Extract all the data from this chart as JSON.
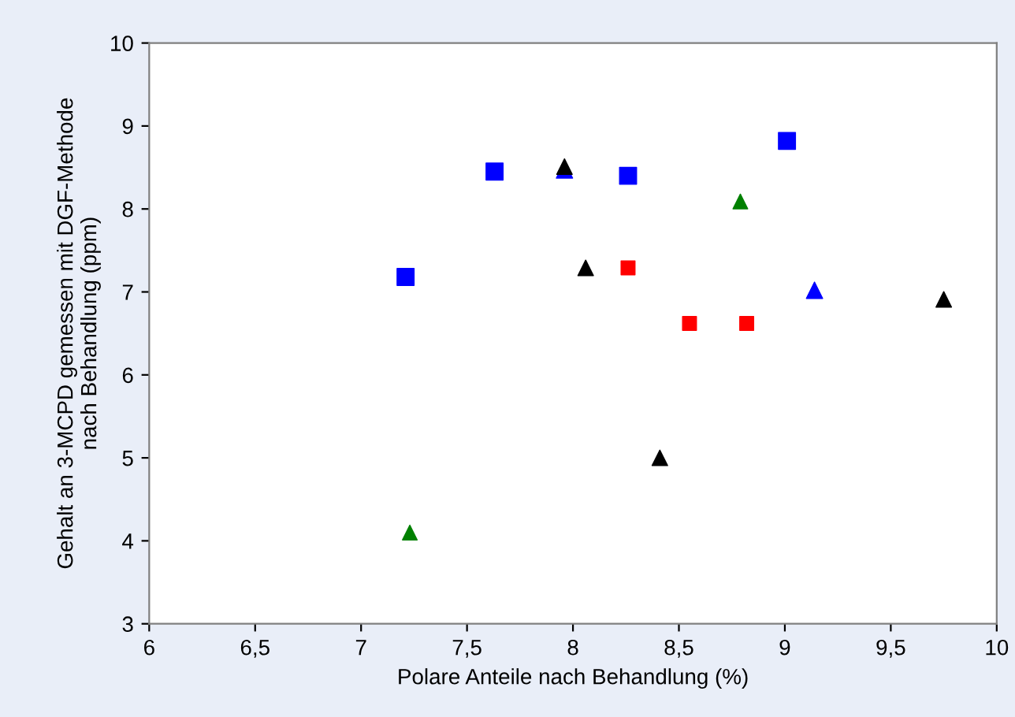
{
  "chart_data": {
    "type": "scatter",
    "xlabel": "Polare Anteile nach Behandlung (%)",
    "ylabel": "Gehalt an 3-MCPD gemessen mit DGF-Methode\nnach Behandlung (ppm)",
    "xlim": [
      6,
      10
    ],
    "ylim": [
      3,
      10
    ],
    "xticks": [
      6,
      {
        "value": 6.5,
        "label": "6,5"
      },
      7,
      {
        "value": 7.5,
        "label": "7,5"
      },
      8,
      {
        "value": 8.5,
        "label": "8,5"
      },
      9,
      {
        "value": 9.5,
        "label": "9,5"
      },
      10
    ],
    "yticks": [
      3,
      4,
      5,
      6,
      7,
      8,
      9,
      10
    ],
    "grid": false,
    "series": [
      {
        "color": "#0000ff",
        "marker": "square",
        "x": [
          7.21,
          7.63,
          8.26,
          9.01
        ],
        "values": [
          7.18,
          8.45,
          8.4,
          8.82
        ]
      },
      {
        "color": "#0000ff",
        "marker": "triangle",
        "x": [
          7.96,
          9.14
        ],
        "values": [
          8.47,
          7.02
        ]
      },
      {
        "color": "#000000",
        "marker": "triangle",
        "x": [
          7.96,
          8.06,
          8.41,
          9.75
        ],
        "values": [
          8.51,
          7.29,
          5.0,
          6.91
        ]
      },
      {
        "color": "#008000",
        "marker": "triangle",
        "x": [
          7.23,
          8.79
        ],
        "values": [
          4.1,
          8.09
        ]
      },
      {
        "color": "#ff0000",
        "marker": "square",
        "x": [
          8.26,
          8.55,
          8.82
        ],
        "values": [
          7.29,
          6.62,
          6.62
        ]
      }
    ]
  }
}
